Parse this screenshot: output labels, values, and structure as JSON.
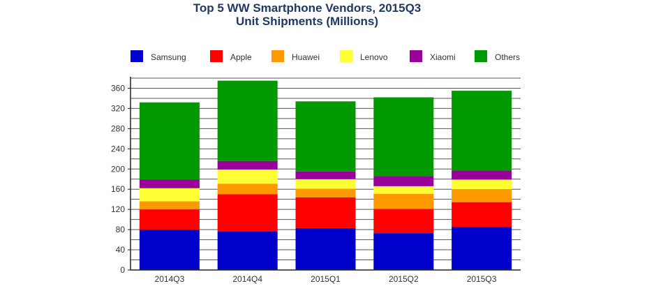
{
  "chart_data": {
    "type": "bar",
    "stacked": true,
    "title": "Top 5 WW Smartphone Vendors, 2015Q3",
    "subtitle": "Unit Shipments (Millions)",
    "xlabel": "",
    "ylabel": "",
    "categories": [
      "2014Q3",
      "2014Q4",
      "2015Q1",
      "2015Q2",
      "2015Q3"
    ],
    "ylim": [
      0,
      380
    ],
    "yticks": [
      0,
      40,
      80,
      120,
      160,
      200,
      240,
      280,
      320,
      360
    ],
    "grid": true,
    "legend_position": "top",
    "series": [
      {
        "name": "Samsung",
        "color": "#0000cc",
        "values": [
          80,
          76,
          83,
          73,
          85
        ]
      },
      {
        "name": "Apple",
        "color": "#ff0000",
        "values": [
          40,
          74,
          61,
          48,
          49
        ]
      },
      {
        "name": "Huawei",
        "color": "#ff9900",
        "values": [
          16,
          21,
          17,
          30,
          26
        ]
      },
      {
        "name": "Lenovo",
        "color": "#ffff33",
        "values": [
          26,
          28,
          19,
          15,
          19
        ]
      },
      {
        "name": "Xiaomi",
        "color": "#990099",
        "values": [
          17,
          17,
          15,
          20,
          18
        ]
      },
      {
        "name": "Others",
        "color": "#009900",
        "values": [
          153,
          159,
          139,
          156,
          158
        ]
      }
    ]
  }
}
